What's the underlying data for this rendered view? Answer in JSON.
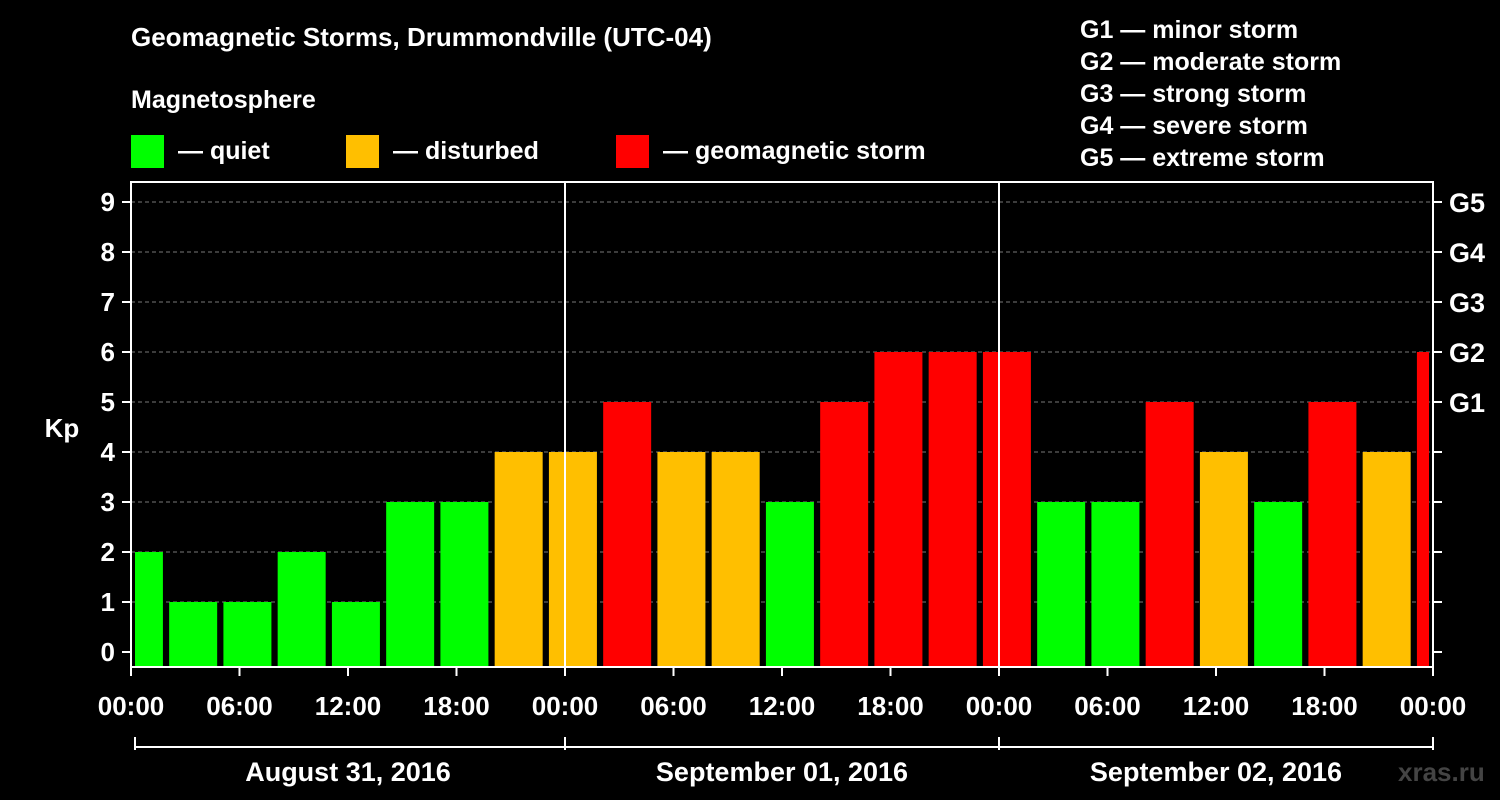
{
  "title": "Geomagnetic Storms, Drummondville (UTC-04)",
  "subtitle": "Magnetosphere",
  "legend": [
    {
      "color": "#00ff00",
      "label": "— quiet"
    },
    {
      "color": "#ffbf00",
      "label": "— disturbed"
    },
    {
      "color": "#ff0000",
      "label": "— geomagnetic storm"
    }
  ],
  "storm_scale": [
    "G1 — minor storm",
    "G2 — moderate storm",
    "G3 — strong storm",
    "G4 — severe storm",
    "G5 — extreme storm"
  ],
  "watermark": "xras.ru",
  "colors": {
    "quiet": "#00ff00",
    "disturbed": "#ffbf00",
    "storm": "#ff0000"
  },
  "chart_data": {
    "type": "bar",
    "ylabel": "Kp",
    "ylim": [
      0,
      9
    ],
    "yticks": [
      "0",
      "1",
      "2",
      "3",
      "4",
      "5",
      "6",
      "7",
      "8",
      "9"
    ],
    "right_axis_labels": [
      {
        "kp": 5,
        "label": "G1"
      },
      {
        "kp": 6,
        "label": "G2"
      },
      {
        "kp": 7,
        "label": "G3"
      },
      {
        "kp": 8,
        "label": "G4"
      },
      {
        "kp": 9,
        "label": "G5"
      }
    ],
    "xtick_labels": [
      "00:00",
      "06:00",
      "12:00",
      "18:00",
      "00:00",
      "06:00",
      "12:00",
      "18:00",
      "00:00",
      "06:00",
      "12:00",
      "18:00",
      "00:00"
    ],
    "x_hours_span": 72,
    "day_labels": [
      "August 31, 2016",
      "September 01, 2016",
      "September 02, 2016"
    ],
    "bin_hours": 3,
    "start_hour": -1,
    "values": [
      2,
      1,
      1,
      2,
      1,
      3,
      3,
      4,
      4,
      5,
      4,
      4,
      3,
      5,
      6,
      6,
      6,
      3,
      3,
      5,
      4,
      3,
      5,
      4,
      6
    ],
    "categories": [
      "quiet",
      "quiet",
      "quiet",
      "quiet",
      "quiet",
      "quiet",
      "quiet",
      "disturbed",
      "disturbed",
      "storm",
      "disturbed",
      "disturbed",
      "quiet",
      "storm",
      "storm",
      "storm",
      "storm",
      "quiet",
      "quiet",
      "storm",
      "disturbed",
      "quiet",
      "storm",
      "disturbed",
      "storm"
    ],
    "grid": true
  }
}
